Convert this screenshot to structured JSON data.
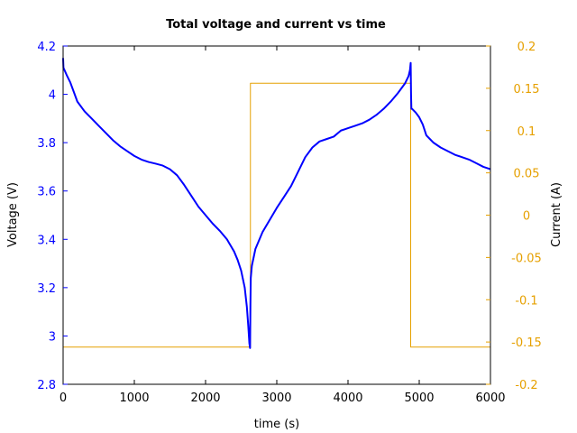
{
  "chart_data": {
    "type": "line",
    "title": "Total voltage and current vs time",
    "xlabel": "time (s)",
    "ylabel_left": "Voltage (V)",
    "ylabel_right": "Current (A)",
    "xlim": [
      0,
      6000
    ],
    "ylim_left": [
      2.8,
      4.2
    ],
    "ylim_right": [
      -0.2,
      0.2
    ],
    "x_ticks": [
      "0",
      "1000",
      "2000",
      "3000",
      "4000",
      "5000",
      "6000"
    ],
    "y_left_ticks": [
      "2.8",
      "3",
      "3.2",
      "3.4",
      "3.6",
      "3.8",
      "4",
      "4.2"
    ],
    "y_right_ticks": [
      "-0.2",
      "-0.15",
      "-0.1",
      "-0.05",
      "0",
      "0.05",
      "0.1",
      "0.15",
      "0.2"
    ],
    "grid": false,
    "colors": {
      "voltage": "#0000ff",
      "current": "#e6a000",
      "left_axis": "#0000ff",
      "right_axis": "#e6a000"
    },
    "series": [
      {
        "axis": "left",
        "x": [
          0,
          5,
          20,
          50,
          100,
          150,
          200,
          300,
          400,
          500,
          600,
          700,
          800,
          900,
          1000,
          1100,
          1200,
          1300,
          1400,
          1500,
          1600,
          1700,
          1800,
          1900,
          2000,
          2100,
          2200,
          2300,
          2400,
          2450,
          2500,
          2550,
          2580,
          2600,
          2615,
          2625,
          2630,
          2635,
          2650,
          2700,
          2800,
          2900,
          3000,
          3100,
          3200,
          3300,
          3400,
          3500,
          3600,
          3700,
          3800,
          3900,
          4000,
          4100,
          4200,
          4300,
          4400,
          4500,
          4600,
          4700,
          4800,
          4850,
          4870,
          4880,
          4885,
          4890,
          4900,
          4950,
          5000,
          5050,
          5100,
          5150,
          5200,
          5300,
          5400,
          5500,
          5600,
          5700,
          5800,
          5900,
          6000
        ],
        "y": [
          4.15,
          4.11,
          4.1,
          4.08,
          4.05,
          4.01,
          3.97,
          3.93,
          3.9,
          3.87,
          3.84,
          3.81,
          3.785,
          3.765,
          3.745,
          3.73,
          3.72,
          3.713,
          3.705,
          3.69,
          3.665,
          3.625,
          3.58,
          3.535,
          3.5,
          3.465,
          3.435,
          3.4,
          3.35,
          3.315,
          3.27,
          3.2,
          3.12,
          3.04,
          2.97,
          2.95,
          3.13,
          3.24,
          3.29,
          3.36,
          3.43,
          3.48,
          3.53,
          3.575,
          3.62,
          3.68,
          3.74,
          3.78,
          3.805,
          3.815,
          3.825,
          3.85,
          3.86,
          3.87,
          3.88,
          3.895,
          3.915,
          3.94,
          3.97,
          4.005,
          4.045,
          4.075,
          4.1,
          4.13,
          4.0,
          3.94,
          3.94,
          3.925,
          3.905,
          3.875,
          3.83,
          3.815,
          3.8,
          3.78,
          3.765,
          3.75,
          3.74,
          3.73,
          3.715,
          3.7,
          3.69
        ]
      },
      {
        "axis": "right",
        "x": [
          0,
          2630,
          2630,
          4880,
          4880,
          6000
        ],
        "y": [
          -0.156,
          -0.156,
          0.156,
          0.156,
          -0.156,
          -0.156
        ]
      }
    ]
  }
}
